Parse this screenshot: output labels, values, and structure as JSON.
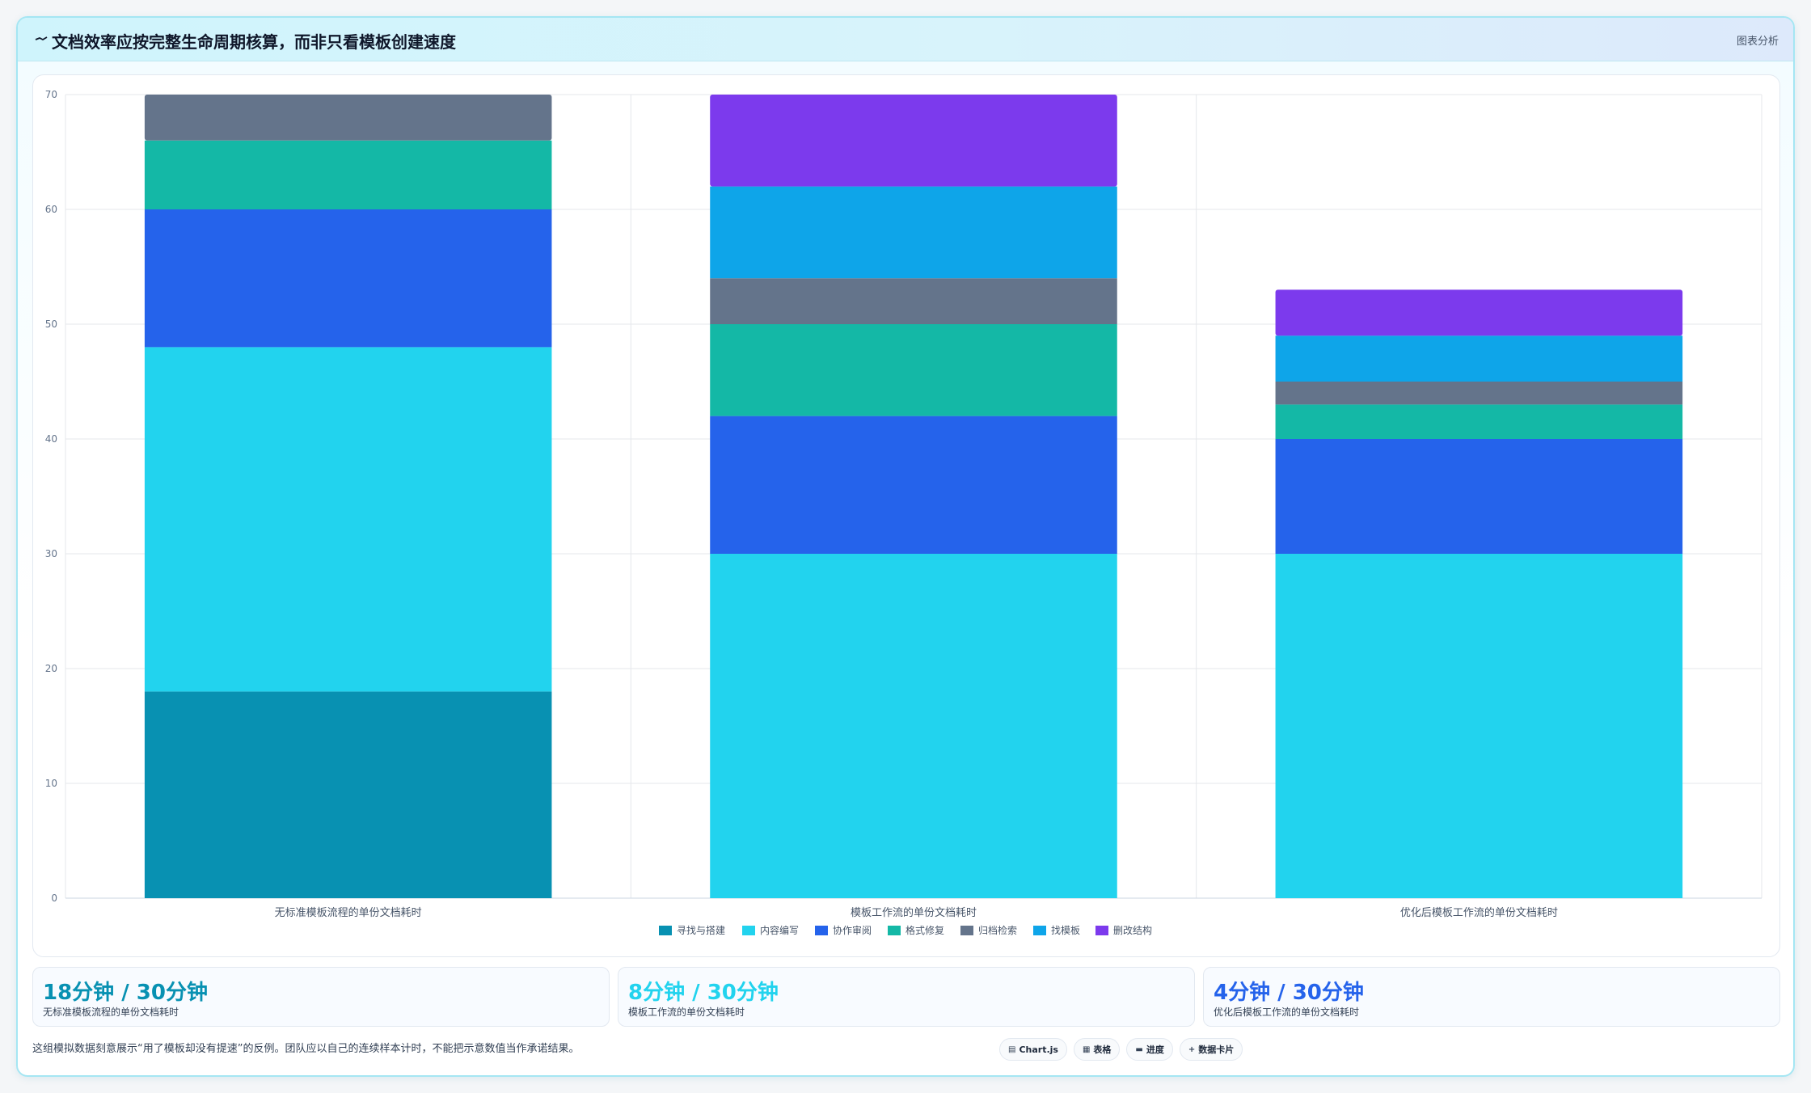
{
  "header": {
    "title": "文档效率应按完整生命周期核算，而非只看模板创建速度",
    "tag": "图表分析"
  },
  "chart_data": {
    "type": "bar",
    "stacked": true,
    "categories": [
      "无标准模板流程的单份文档耗时",
      "模板工作流的单份文档耗时",
      "优化后模板工作流的单份文档耗时"
    ],
    "series": [
      {
        "name": "寻找与搭建",
        "color": "#0891b2",
        "values": [
          18,
          0,
          0
        ]
      },
      {
        "name": "内容编写",
        "color": "#22d3ee",
        "values": [
          30,
          30,
          30
        ]
      },
      {
        "name": "协作审阅",
        "color": "#2563eb",
        "values": [
          12,
          12,
          10
        ]
      },
      {
        "name": "格式修复",
        "color": "#14b8a6",
        "values": [
          6,
          8,
          3
        ]
      },
      {
        "name": "归档检索",
        "color": "#64748b",
        "values": [
          4,
          4,
          2
        ]
      },
      {
        "name": "找模板",
        "color": "#0ea5e9",
        "values": [
          0,
          8,
          4
        ]
      },
      {
        "name": "删改结构",
        "color": "#7c3aed",
        "values": [
          0,
          8,
          4
        ]
      }
    ],
    "ylim": [
      0,
      70
    ],
    "yticks": [
      0,
      10,
      20,
      30,
      40,
      50,
      60,
      70
    ],
    "grid": true,
    "legend_position": "bottom"
  },
  "kpis": [
    {
      "value": "18分钟 / 30分钟",
      "label": "无标准模板流程的单份文档耗时",
      "color": "#0891b2"
    },
    {
      "value": "8分钟 / 30分钟",
      "label": "模板工作流的单份文档耗时",
      "color": "#22d3ee"
    },
    {
      "value": "4分钟 / 30分钟",
      "label": "优化后模板工作流的单份文档耗时",
      "color": "#2563eb"
    }
  ],
  "footnote": "这组模拟数据刻意展示“用了模板却没有提速”的反例。团队应以自己的连续样本计时，不能把示意数值当作承诺结果。",
  "toolbar": {
    "chartjs": "Chart.js",
    "table": "表格",
    "progress": "进度",
    "cards": "数据卡片"
  }
}
